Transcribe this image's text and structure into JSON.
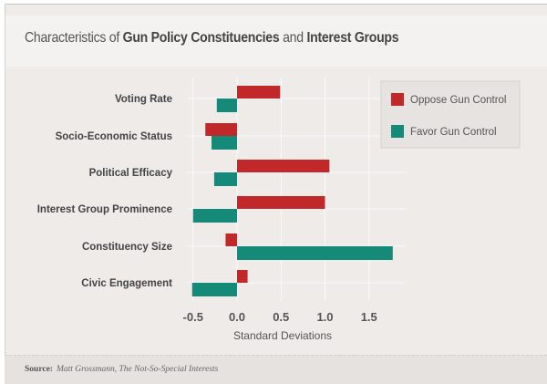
{
  "chart_data": {
    "type": "bar",
    "orientation": "horizontal",
    "title_parts": [
      {
        "text": "Characteristics of ",
        "bold": false
      },
      {
        "text": "Gun Policy Constituencies",
        "bold": true
      },
      {
        "text": " and ",
        "bold": false
      },
      {
        "text": "Interest Groups",
        "bold": true
      }
    ],
    "categories": [
      "Voting Rate",
      "Socio-Economic Status",
      "Political Efficacy",
      "Interest Group Prominence",
      "Constituency Size",
      "Civic Engagement"
    ],
    "series": [
      {
        "name": "Favor Gun Control",
        "color": "#168a78",
        "values": [
          -0.23,
          -0.29,
          -0.26,
          -0.5,
          1.77,
          -0.51
        ]
      },
      {
        "name": "Oppose Gun Control",
        "color": "#c1282a",
        "values": [
          0.49,
          -0.36,
          1.05,
          1.0,
          -0.13,
          0.12
        ]
      }
    ],
    "xlabel": "Standard Deviations",
    "xlim": [
      -0.5,
      1.85
    ],
    "xticks": [
      -0.5,
      0.0,
      0.5,
      1.0,
      1.5
    ],
    "xtick_labels": [
      "-0.5",
      "0.0",
      "0.5",
      "1.0",
      "1.5"
    ],
    "grid": true,
    "legend_position": "top-right"
  },
  "source": {
    "label": "Source:",
    "text": "Matt Grossmann, The Not-So-Special Interests"
  }
}
